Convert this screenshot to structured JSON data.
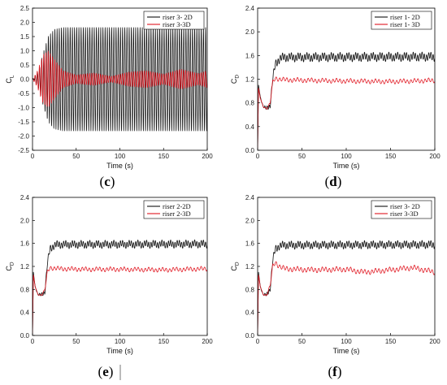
{
  "colors": {
    "series_2d": "#111111",
    "series_3d": "#e0141e",
    "axis": "#000000"
  },
  "chart_data": [
    {
      "id": "c",
      "panel_label": "c",
      "type": "line",
      "ylabel_main": "C",
      "ylabel_sub": "L",
      "xlabel": "Time (s)",
      "xlim": [
        0,
        200
      ],
      "ylim": [
        -2.5,
        2.5
      ],
      "xticks": [
        0,
        50,
        100,
        150,
        200
      ],
      "yticks": [
        -2.5,
        -2.0,
        -1.5,
        -1.0,
        -0.5,
        0.0,
        0.5,
        1.0,
        1.5,
        2.0,
        2.5
      ],
      "ytick_labels": [
        "-2.5",
        "-2.0",
        "-1.5",
        "-1.0",
        "-0.5",
        "0.0",
        "0.5",
        "1.0",
        "1.5",
        "2.0",
        "2.5"
      ],
      "legend_position": "top-right",
      "series": [
        {
          "name": "riser 3- 2D",
          "color_key": "series_2d",
          "envelope": {
            "t": [
              0,
              5,
              8,
              12,
              18,
              25,
              35,
              200
            ],
            "amp": [
              0,
              0.2,
              0.4,
              0.9,
              1.5,
              1.75,
              1.82,
              1.82
            ]
          },
          "mean": 0.0,
          "period_s": 2.5
        },
        {
          "name": "riser 3-3D",
          "color_key": "series_3d",
          "envelope": {
            "t": [
              0,
              5,
              8,
              12,
              18,
              25,
              35,
              50,
              70,
              90,
              110,
              130,
              150,
              170,
              190,
              200
            ],
            "amp": [
              0,
              0.25,
              0.5,
              0.85,
              1.0,
              0.7,
              0.3,
              0.15,
              0.22,
              0.1,
              0.25,
              0.3,
              0.18,
              0.35,
              0.2,
              0.3
            ]
          },
          "mean": 0.0,
          "period_s": 2.5
        }
      ]
    },
    {
      "id": "d",
      "panel_label": "d",
      "type": "line",
      "ylabel_main": "C",
      "ylabel_sub": "D",
      "xlabel": "Time (s)",
      "xlim": [
        0,
        200
      ],
      "ylim": [
        0.0,
        2.4
      ],
      "xticks": [
        0,
        50,
        100,
        150,
        200
      ],
      "yticks": [
        0.0,
        0.4,
        0.8,
        1.2,
        1.6,
        2.0,
        2.4
      ],
      "ytick_labels": [
        "0.0",
        "0.4",
        "0.8",
        "1.2",
        "1.6",
        "2.0",
        "2.4"
      ],
      "legend_position": "top-right",
      "series": [
        {
          "name": "riser 1- 2D",
          "color_key": "series_2d",
          "trend": {
            "t": [
              0,
              1,
              3,
              6,
              10,
              14,
              17,
              20,
              25,
              30,
              200
            ],
            "v": [
              0.0,
              1.1,
              0.9,
              0.75,
              0.7,
              0.75,
              1.2,
              1.45,
              1.55,
              1.57,
              1.58
            ]
          },
          "osc_amp": 0.055,
          "period_s": 2.5
        },
        {
          "name": "riser 1- 3D",
          "color_key": "series_3d",
          "trend": {
            "t": [
              0,
              1,
              3,
              6,
              10,
              14,
              17,
              20,
              25,
              30,
              60,
              100,
              150,
              200
            ],
            "v": [
              0.0,
              1.05,
              0.88,
              0.75,
              0.7,
              0.78,
              1.15,
              1.22,
              1.2,
              1.19,
              1.18,
              1.17,
              1.16,
              1.18
            ]
          },
          "osc_amp": 0.03,
          "period_s": 4.0
        }
      ]
    },
    {
      "id": "e",
      "panel_label": "e",
      "type": "line",
      "ylabel_main": "C",
      "ylabel_sub": "D",
      "xlabel": "Time (s)",
      "xlim": [
        0,
        200
      ],
      "ylim": [
        0.0,
        2.4
      ],
      "xticks": [
        0,
        50,
        100,
        150,
        200
      ],
      "yticks": [
        0.0,
        0.4,
        0.8,
        1.2,
        1.6,
        2.0,
        2.4
      ],
      "ytick_labels": [
        "0.0",
        "0.4",
        "0.8",
        "1.2",
        "1.6",
        "2.0",
        "2.4"
      ],
      "legend_position": "top-right",
      "series": [
        {
          "name": "riser 2-2D",
          "color_key": "series_2d",
          "trend": {
            "t": [
              0,
              1,
              3,
              6,
              10,
              14,
              17,
              20,
              25,
              30,
              200
            ],
            "v": [
              0.0,
              1.1,
              0.85,
              0.72,
              0.7,
              0.75,
              1.25,
              1.5,
              1.57,
              1.58,
              1.59
            ]
          },
          "osc_amp": 0.05,
          "period_s": 2.5
        },
        {
          "name": "riser 2-3D",
          "color_key": "series_3d",
          "trend": {
            "t": [
              0,
              1,
              3,
              6,
              10,
              14,
              17,
              20,
              25,
              30,
              60,
              100,
              150,
              200
            ],
            "v": [
              0.0,
              1.05,
              0.85,
              0.72,
              0.7,
              0.78,
              1.1,
              1.18,
              1.17,
              1.16,
              1.15,
              1.15,
              1.14,
              1.16
            ]
          },
          "osc_amp": 0.03,
          "period_s": 4.0
        }
      ]
    },
    {
      "id": "f",
      "panel_label": "f",
      "type": "line",
      "ylabel_main": "C",
      "ylabel_sub": "D",
      "xlabel": "Time (s)",
      "xlim": [
        0,
        200
      ],
      "ylim": [
        0.0,
        2.4
      ],
      "xticks": [
        0,
        50,
        100,
        150,
        200
      ],
      "yticks": [
        0.0,
        0.4,
        0.8,
        1.2,
        1.6,
        2.0,
        2.4
      ],
      "ytick_labels": [
        "0.0",
        "0.4",
        "0.8",
        "1.2",
        "1.6",
        "2.0",
        "2.4"
      ],
      "legend_position": "top-right",
      "series": [
        {
          "name": "riser 3- 2D",
          "color_key": "series_2d",
          "trend": {
            "t": [
              0,
              1,
              3,
              6,
              10,
              14,
              17,
              20,
              25,
              30,
              200
            ],
            "v": [
              0.0,
              1.1,
              0.85,
              0.72,
              0.7,
              0.8,
              1.3,
              1.5,
              1.56,
              1.57,
              1.58
            ]
          },
          "osc_amp": 0.05,
          "period_s": 2.5
        },
        {
          "name": "riser 3-3D",
          "color_key": "series_3d",
          "trend": {
            "t": [
              0,
              1,
              3,
              6,
              10,
              14,
              17,
              20,
              25,
              30,
              60,
              100,
              120,
              150,
              175,
              200
            ],
            "v": [
              0.0,
              1.05,
              0.85,
              0.72,
              0.7,
              0.85,
              1.2,
              1.27,
              1.2,
              1.16,
              1.14,
              1.15,
              1.1,
              1.14,
              1.18,
              1.1
            ]
          },
          "osc_amp": 0.035,
          "period_s": 4.0
        }
      ]
    }
  ]
}
